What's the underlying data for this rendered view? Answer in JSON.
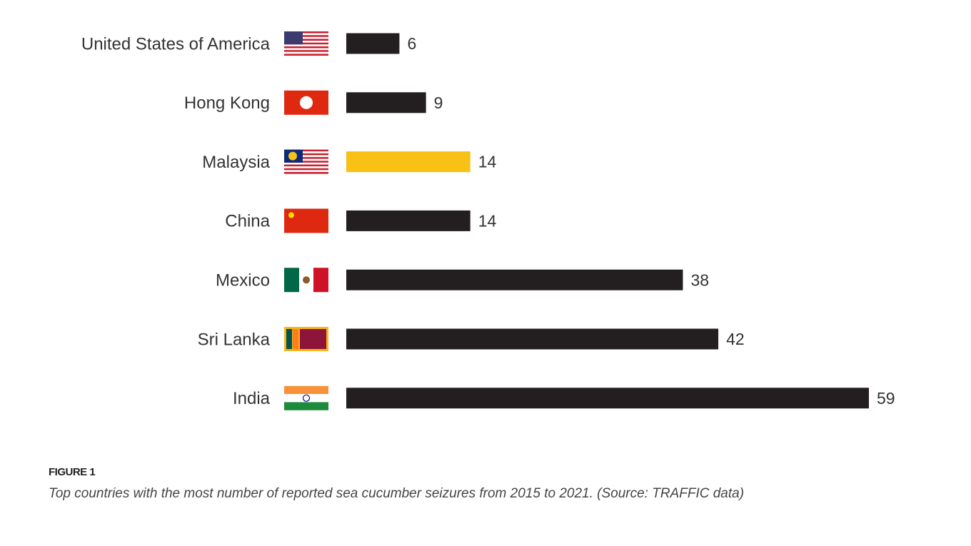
{
  "chart_data": {
    "type": "bar",
    "orientation": "horizontal",
    "categories": [
      "United States of America",
      "Hong Kong",
      "Malaysia",
      "China",
      "Mexico",
      "Sri Lanka",
      "India"
    ],
    "values": [
      6,
      9,
      14,
      14,
      38,
      42,
      59
    ],
    "colors": [
      "#231f20",
      "#231f20",
      "#f9c015",
      "#231f20",
      "#231f20",
      "#231f20",
      "#231f20"
    ],
    "figure_label": "FIGURE 1",
    "caption": "Top countries with the most number of reported sea cucumber seizures from 2015 to 2021.  (Source: TRAFFIC data)"
  }
}
